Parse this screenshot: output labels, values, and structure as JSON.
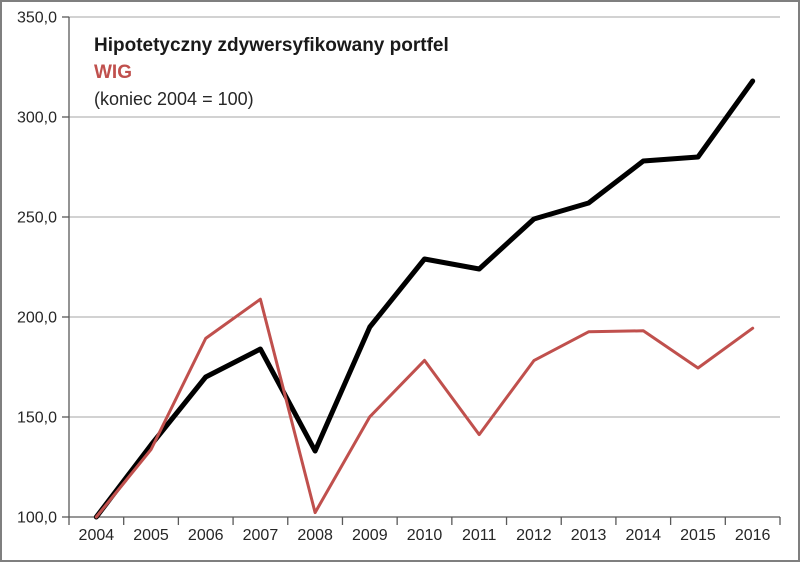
{
  "chart_data": {
    "type": "line",
    "title": "Hipotetyczny zdywersyfikowany portfel",
    "subtitle": "(koniec 2004 = 100)",
    "categories": [
      "2004",
      "2005",
      "2006",
      "2007",
      "2008",
      "2009",
      "2010",
      "2011",
      "2012",
      "2013",
      "2014",
      "2015",
      "2016"
    ],
    "series": [
      {
        "name": "Hipotetyczny zdywersyfikowany portfel",
        "slug": "portfolio",
        "color": "#000000",
        "stroke_width": 5,
        "values": [
          100.0,
          136.0,
          170.0,
          184.0,
          133.0,
          195.0,
          229.0,
          224.0,
          249.0,
          257.0,
          278.0,
          280.0,
          318.0
        ]
      },
      {
        "name": "WIG",
        "slug": "wig",
        "color": "#c0504d",
        "stroke_width": 3,
        "values": [
          100.0,
          133.7,
          189.3,
          208.9,
          102.2,
          150.1,
          178.3,
          141.2,
          178.2,
          192.6,
          193.1,
          174.5,
          194.4
        ]
      }
    ],
    "ylim": [
      100,
      350
    ],
    "ytick_step": 50,
    "ytick_labels": [
      "100,0",
      "150,0",
      "200,0",
      "250,0",
      "300,0",
      "350,0"
    ],
    "grid": true,
    "legend_position": "top-left, stacked with title",
    "number_format": "comma-decimal"
  },
  "colors": {
    "background": "#ffffff",
    "frame_border": "#7f7f7f",
    "gridline": "#a6a6a6",
    "axis": "#595959",
    "label_text": "#262626",
    "title_text": "#1a1a1a",
    "wig_accent": "#c0504d"
  }
}
